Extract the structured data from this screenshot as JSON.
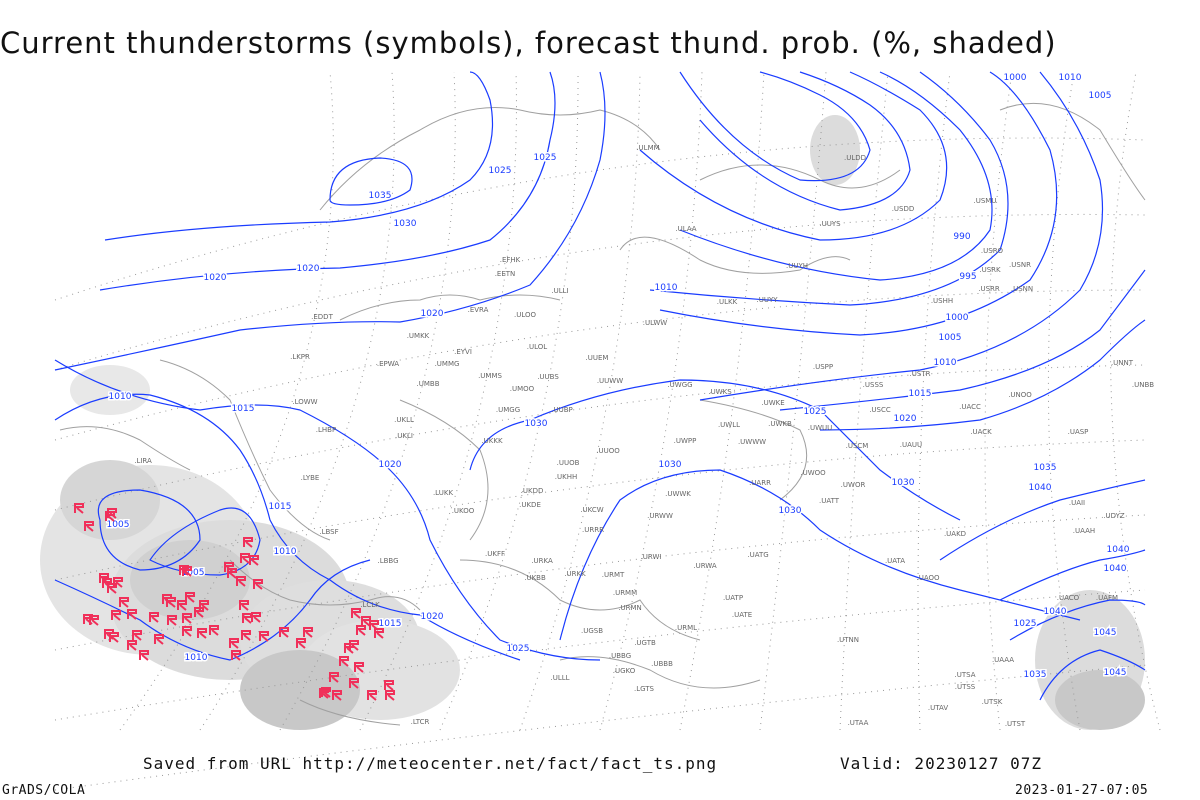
{
  "title": "Current thunderstorms (symbols), forecast thund. prob. (%, shaded)",
  "footer": {
    "saved_from": "Saved from URL http://meteocenter.net/fact/fact_ts.png",
    "valid": "Valid: 20230127 07Z",
    "software": "GrADS/COLA",
    "generated": "2023-01-27-07:05"
  },
  "colors": {
    "isobar": "#1a3cff",
    "coast": "#a0a0a0",
    "shading": "#d8d8d8",
    "thunderstorm_symbol": "#f0305a",
    "station_label": "#666666"
  },
  "icons": {
    "thunderstorm_symbol": "thunderstorm-icon"
  },
  "isobar_labels": [
    "1035",
    "1030",
    "1025",
    "1020",
    "1025",
    "1020",
    "1015",
    "1010",
    "1020",
    "1015",
    "1010",
    "1005",
    "1005",
    "1010",
    "1015",
    "1020",
    "1025",
    "1030",
    "1030",
    "1030",
    "1010",
    "1005",
    "1000",
    "995",
    "990",
    "1000",
    "1005",
    "1010",
    "1015",
    "1020",
    "1025",
    "1030",
    "1035",
    "1040",
    "1040",
    "1040",
    "1045",
    "1035",
    "1045",
    "1040",
    "1025",
    "1020",
    "1010"
  ],
  "stations": [
    "ULMM",
    "ULDD",
    "USDD",
    "USMU",
    "UUYS",
    "ULAA",
    "USRO",
    "UUYH",
    "USRK",
    "USNR",
    "EFHK",
    "EETN",
    "ULLI",
    "USRR",
    "USNN",
    "USHH",
    "ULKK",
    "UUYY",
    "EVRA",
    "ULOO",
    "ULWW",
    "EDDT",
    "UMKK",
    "EYVI",
    "ULOL",
    "UUEM",
    "EPWA",
    "UMMG",
    "LKPR",
    "UMMS",
    "UMOO",
    "UUBS",
    "UUWW",
    "UWGG",
    "UWKS",
    "USPP",
    "USTR",
    "USSS",
    "UMBB",
    "LOWW",
    "UKLL",
    "UMGG",
    "UUBP",
    "UWKE",
    "USCC",
    "UACC",
    "UNOO",
    "UNBB",
    "UNNT",
    "LHBP",
    "UKLI",
    "UWLL",
    "UWKB",
    "UWUU",
    "UWWW",
    "USCM",
    "UAUU",
    "UACK",
    "UASP",
    "UKKK",
    "UWPP",
    "LIRA",
    "UUOO",
    "UUOB",
    "UWOO",
    "UWOR",
    "UATT",
    "LYBE",
    "UKHH",
    "UKDD",
    "LUKK",
    "UKDE",
    "UKOO",
    "URWW",
    "UARR",
    "UWWK",
    "UKCW",
    "URRR",
    "LBSF",
    "UKFF",
    "URWI",
    "UATG",
    "URKA",
    "URKK",
    "URMT",
    "URWA",
    "UAKD",
    "UAAH",
    "URMM",
    "URMN",
    "UATE",
    "UATP",
    "URML",
    "UTNN",
    "UBBB",
    "UTSA",
    "UTSS",
    "UTSK",
    "UTAV",
    "UTST",
    "UTAA",
    "UGTB",
    "UBBG",
    "UGKO",
    "LTCR",
    "LGTS",
    "LCLK",
    "UAAA",
    "UAII",
    "UAFM",
    "UAOO",
    "UATA",
    "UACO",
    "UKBB",
    "LBBG",
    "UGSB",
    "UDYZ",
    "ULLL"
  ]
}
